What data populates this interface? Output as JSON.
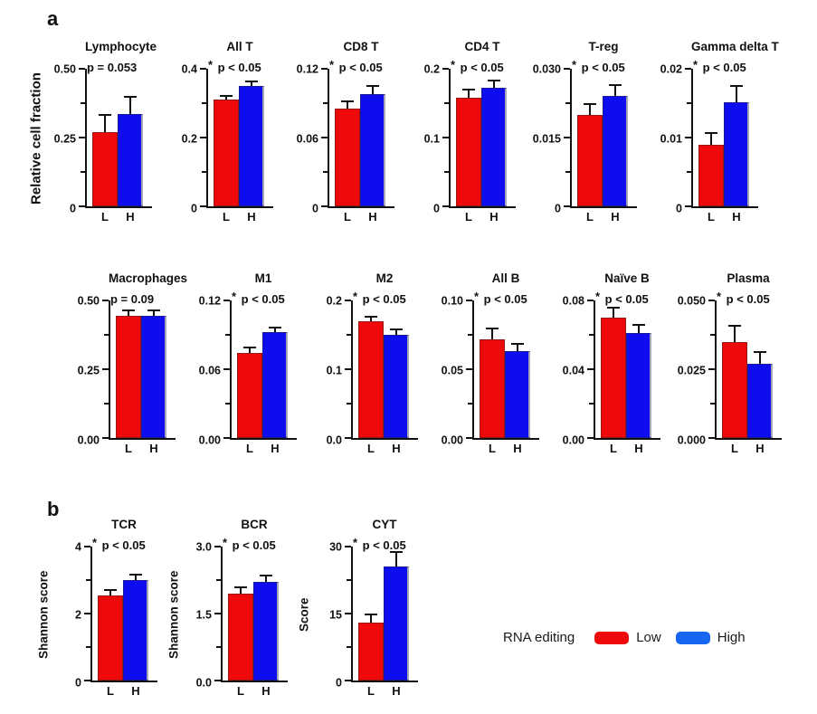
{
  "figure": {
    "panel_a_label": "a",
    "panel_b_label": "b",
    "row1_ylabel": "Relative cell fraction",
    "colors": {
      "low_bar": "#ee0a0a",
      "high_bar": "#0d0df0"
    },
    "legend": {
      "title": "RNA editing",
      "items": [
        {
          "label": "Low",
          "color": "#ee0a0a"
        },
        {
          "label": "High",
          "color": "#1766f0"
        }
      ]
    }
  },
  "chart_data": [
    {
      "type": "bar",
      "row": "a1",
      "slug": "lymphocyte",
      "title": "Lymphocyte",
      "p_label": "p = 0.053",
      "ylim": [
        0,
        0.5
      ],
      "ytick_labels": [
        "0",
        "0.25",
        "0.50"
      ],
      "categories": [
        "L",
        "H"
      ],
      "series": [
        {
          "name": "Low",
          "value": 0.27,
          "error_top": 0.335
        },
        {
          "name": "High",
          "value": 0.335,
          "error_top": 0.4
        }
      ]
    },
    {
      "type": "bar",
      "row": "a1",
      "slug": "all-t",
      "title": "All T",
      "p_label": "* p < 0.05",
      "ylim": [
        0,
        0.4
      ],
      "ytick_labels": [
        "0",
        "0.2",
        "0.4"
      ],
      "categories": [
        "L",
        "H"
      ],
      "series": [
        {
          "name": "Low",
          "value": 0.31,
          "error_top": 0.325
        },
        {
          "name": "High",
          "value": 0.35,
          "error_top": 0.366
        }
      ]
    },
    {
      "type": "bar",
      "row": "a1",
      "slug": "cd8-t",
      "title": "CD8 T",
      "p_label": "* p < 0.05",
      "ylim": [
        0,
        0.12
      ],
      "ytick_labels": [
        "0",
        "0.06",
        "0.12"
      ],
      "categories": [
        "L",
        "H"
      ],
      "series": [
        {
          "name": "Low",
          "value": 0.085,
          "error_top": 0.092
        },
        {
          "name": "High",
          "value": 0.098,
          "error_top": 0.106
        }
      ]
    },
    {
      "type": "bar",
      "row": "a1",
      "slug": "cd4-t",
      "title": "CD4 T",
      "p_label": "* p < 0.05",
      "ylim": [
        0,
        0.2
      ],
      "ytick_labels": [
        "0",
        "0.1",
        "0.2"
      ],
      "categories": [
        "L",
        "H"
      ],
      "series": [
        {
          "name": "Low",
          "value": 0.158,
          "error_top": 0.171
        },
        {
          "name": "High",
          "value": 0.173,
          "error_top": 0.184
        }
      ]
    },
    {
      "type": "bar",
      "row": "a1",
      "slug": "t-reg",
      "title": "T-reg",
      "p_label": "* p < 0.05",
      "ylim": [
        0,
        0.03
      ],
      "ytick_labels": [
        "0",
        "0.015",
        "0.030"
      ],
      "categories": [
        "L",
        "H"
      ],
      "series": [
        {
          "name": "Low",
          "value": 0.02,
          "error_top": 0.0225
        },
        {
          "name": "High",
          "value": 0.024,
          "error_top": 0.0267
        }
      ]
    },
    {
      "type": "bar",
      "row": "a1",
      "slug": "gamma-delta-t",
      "title": "Gamma delta T",
      "p_label": "* p < 0.05",
      "ylim": [
        0,
        0.02
      ],
      "ytick_labels": [
        "0",
        "0.01",
        "0.02"
      ],
      "categories": [
        "L",
        "H"
      ],
      "series": [
        {
          "name": "Low",
          "value": 0.009,
          "error_top": 0.0108
        },
        {
          "name": "High",
          "value": 0.0151,
          "error_top": 0.0176
        }
      ]
    },
    {
      "type": "bar",
      "row": "a2",
      "slug": "macrophages",
      "title": "Macrophages",
      "p_label": "p = 0.09",
      "ylim": [
        0,
        0.5
      ],
      "ytick_labels": [
        "0.00",
        "0.25",
        "0.50"
      ],
      "categories": [
        "L",
        "H"
      ],
      "series": [
        {
          "name": "Low",
          "value": 0.443,
          "error_top": 0.467
        },
        {
          "name": "High",
          "value": 0.444,
          "error_top": 0.467
        }
      ]
    },
    {
      "type": "bar",
      "row": "a2",
      "slug": "m1",
      "title": "M1",
      "p_label": "* p < 0.05",
      "ylim": [
        0,
        0.12
      ],
      "ytick_labels": [
        "0.00",
        "0.06",
        "0.12"
      ],
      "categories": [
        "L",
        "H"
      ],
      "series": [
        {
          "name": "Low",
          "value": 0.0745,
          "error_top": 0.0795
        },
        {
          "name": "High",
          "value": 0.092,
          "error_top": 0.0975
        }
      ]
    },
    {
      "type": "bar",
      "row": "a2",
      "slug": "m2",
      "title": "M2",
      "p_label": "* p < 0.05",
      "ylim": [
        0,
        0.2
      ],
      "ytick_labels": [
        "0.0",
        "0.1",
        "0.2"
      ],
      "categories": [
        "L",
        "H"
      ],
      "series": [
        {
          "name": "Low",
          "value": 0.17,
          "error_top": 0.178
        },
        {
          "name": "High",
          "value": 0.15,
          "error_top": 0.159
        }
      ]
    },
    {
      "type": "bar",
      "row": "a2",
      "slug": "all-b",
      "title": "All B",
      "p_label": "* p < 0.05",
      "ylim": [
        0,
        0.1
      ],
      "ytick_labels": [
        "0.00",
        "0.05",
        "0.10"
      ],
      "categories": [
        "L",
        "H"
      ],
      "series": [
        {
          "name": "Low",
          "value": 0.072,
          "error_top": 0.08
        },
        {
          "name": "High",
          "value": 0.063,
          "error_top": 0.069
        }
      ]
    },
    {
      "type": "bar",
      "row": "a2",
      "slug": "naive-b",
      "title": "Naïve B",
      "p_label": "* p < 0.05",
      "ylim": [
        0,
        0.08
      ],
      "ytick_labels": [
        "0.00",
        "0.04",
        "0.08"
      ],
      "categories": [
        "L",
        "H"
      ],
      "series": [
        {
          "name": "Low",
          "value": 0.07,
          "error_top": 0.0765
        },
        {
          "name": "High",
          "value": 0.061,
          "error_top": 0.0665
        }
      ]
    },
    {
      "type": "bar",
      "row": "a2",
      "slug": "plasma",
      "title": "Plasma",
      "p_label": "* p < 0.05",
      "ylim": [
        0,
        0.05
      ],
      "ytick_labels": [
        "0.000",
        "0.025",
        "0.050"
      ],
      "categories": [
        "L",
        "H"
      ],
      "series": [
        {
          "name": "Low",
          "value": 0.035,
          "error_top": 0.041
        },
        {
          "name": "High",
          "value": 0.027,
          "error_top": 0.0315
        }
      ]
    },
    {
      "type": "bar",
      "row": "b1",
      "slug": "tcr",
      "title": "TCR",
      "p_label": "* p < 0.05",
      "ylabel": "Shannon score",
      "ylim": [
        0,
        4
      ],
      "ytick_labels": [
        "0",
        "2",
        "4"
      ],
      "categories": [
        "L",
        "H"
      ],
      "series": [
        {
          "name": "Low",
          "value": 2.55,
          "error_top": 2.72
        },
        {
          "name": "High",
          "value": 3.0,
          "error_top": 3.18
        }
      ]
    },
    {
      "type": "bar",
      "row": "b1",
      "slug": "bcr",
      "title": "BCR",
      "p_label": "* p < 0.05",
      "ylabel": "Shannon score",
      "ylim": [
        0,
        3.0
      ],
      "ytick_labels": [
        "0.0",
        "1.5",
        "3.0"
      ],
      "categories": [
        "L",
        "H"
      ],
      "series": [
        {
          "name": "Low",
          "value": 1.95,
          "error_top": 2.1
        },
        {
          "name": "High",
          "value": 2.2,
          "error_top": 2.38
        }
      ]
    },
    {
      "type": "bar",
      "row": "b1",
      "slug": "cyt",
      "title": "CYT",
      "p_label": "* p < 0.05",
      "ylabel": "Score",
      "ylim": [
        0,
        30
      ],
      "ytick_labels": [
        "0",
        "15",
        "30"
      ],
      "categories": [
        "L",
        "H"
      ],
      "series": [
        {
          "name": "Low",
          "value": 13,
          "error_top": 15
        },
        {
          "name": "High",
          "value": 25.5,
          "error_top": 29
        }
      ]
    }
  ]
}
